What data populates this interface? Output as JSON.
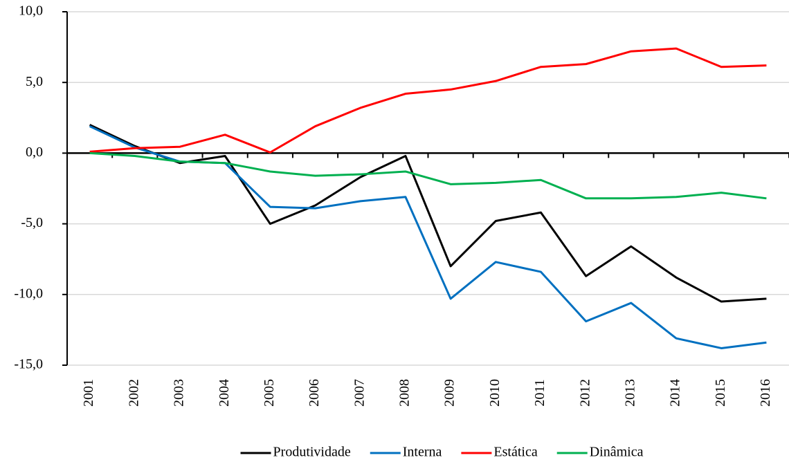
{
  "chart_data": {
    "type": "line",
    "categories": [
      "2001",
      "2002",
      "2003",
      "2004",
      "2005",
      "2006",
      "2007",
      "2008",
      "2009",
      "2010",
      "2011",
      "2012",
      "2013",
      "2014",
      "2015",
      "2016"
    ],
    "series": [
      {
        "name": "Produtividade",
        "color": "#000000",
        "values": [
          2.0,
          0.5,
          -0.7,
          -0.2,
          -5.0,
          -3.7,
          -1.7,
          -0.2,
          -8.0,
          -4.8,
          -4.2,
          -8.7,
          -6.6,
          -8.8,
          -10.5,
          -10.3
        ]
      },
      {
        "name": "Interna",
        "color": "#0070c0",
        "values": [
          1.9,
          0.4,
          -0.6,
          -0.7,
          -3.8,
          -3.9,
          -3.4,
          -3.1,
          -10.3,
          -7.7,
          -8.4,
          -11.9,
          -10.6,
          -13.1,
          -13.8,
          -13.4
        ]
      },
      {
        "name": "Estática",
        "color": "#ff0000",
        "values": [
          0.1,
          0.35,
          0.45,
          1.3,
          0.05,
          1.9,
          3.2,
          4.2,
          4.5,
          5.1,
          6.1,
          6.3,
          7.2,
          7.4,
          6.1,
          6.2
        ]
      },
      {
        "name": "Dinâmica",
        "color": "#00b050",
        "values": [
          0.0,
          -0.2,
          -0.6,
          -0.7,
          -1.3,
          -1.6,
          -1.5,
          -1.3,
          -2.2,
          -2.1,
          -1.9,
          -3.2,
          -3.2,
          -3.1,
          -2.8,
          -3.2
        ]
      }
    ],
    "ylim": [
      -15,
      10
    ],
    "yticks": [
      {
        "value": -15,
        "label": "-15,0"
      },
      {
        "value": -10,
        "label": "-10,0"
      },
      {
        "value": -5,
        "label": "-5,0"
      },
      {
        "value": 0,
        "label": "0,0"
      },
      {
        "value": 5,
        "label": "5,0"
      },
      {
        "value": 10,
        "label": "10,0"
      }
    ],
    "grid": true,
    "legend": "bottom"
  }
}
